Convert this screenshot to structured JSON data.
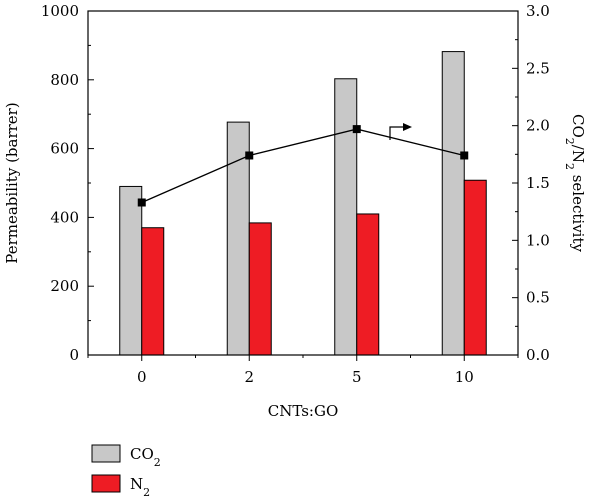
{
  "chart_data": {
    "type": "bar",
    "categories": [
      "0",
      "2",
      "5",
      "10"
    ],
    "xlabel": "CNTs:GO",
    "ylabel": "Permeability (barrer)",
    "y2label": {
      "base": "CO",
      "sub1": "2",
      "mid": "/N",
      "sub2": "2",
      "rest": " selectivity"
    },
    "ylim": [
      0,
      1000
    ],
    "y2lim": [
      0,
      3.0
    ],
    "yticks": [
      "0",
      "200",
      "400",
      "600",
      "800",
      "1000"
    ],
    "y2ticks": [
      "0.0",
      "0.5",
      "1.0",
      "1.5",
      "2.0",
      "2.5",
      "3.0"
    ],
    "series": [
      {
        "name": "CO2",
        "legend_base": "CO",
        "legend_sub": "2",
        "color": "#c8c8c8",
        "values": [
          490,
          677,
          803,
          882
        ]
      },
      {
        "name": "N2",
        "legend_base": "N",
        "legend_sub": "2",
        "color": "#ee1c24",
        "values": [
          370,
          384,
          410,
          508
        ]
      }
    ],
    "line_series": {
      "name": "CO2/N2 selectivity",
      "axis": "right",
      "color": "#000000",
      "values": [
        1.33,
        1.74,
        1.97,
        1.74
      ]
    },
    "grid": false,
    "legend_position": "bottom-left"
  }
}
